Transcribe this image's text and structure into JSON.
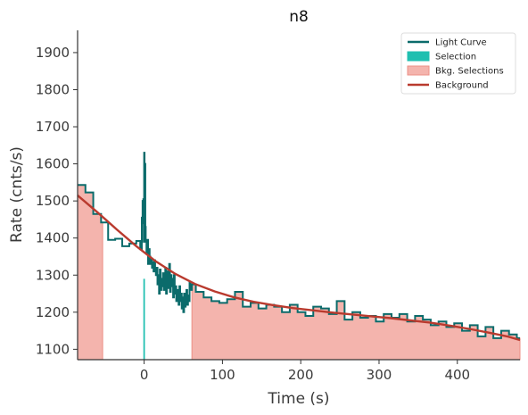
{
  "chart_data": {
    "type": "line",
    "title": "n8",
    "xlabel": "Time (s)",
    "ylabel": "Rate (cnts/s)",
    "xlim": [
      -85,
      480
    ],
    "ylim": [
      1072,
      1960
    ],
    "xticks": [
      0,
      100,
      200,
      300,
      400
    ],
    "yticks": [
      1100,
      1200,
      1300,
      1400,
      1500,
      1600,
      1700,
      1800,
      1900
    ],
    "grid": false,
    "legend_position": "top-right",
    "legend": [
      {
        "label": "Light Curve",
        "kind": "line",
        "color": "#0b6b6b"
      },
      {
        "label": "Selection",
        "kind": "patch",
        "color": "#1fbfb0"
      },
      {
        "label": "Bkg. Selections",
        "kind": "patch",
        "color": "#f4b4ad"
      },
      {
        "label": "Background",
        "kind": "line",
        "color": "#b93a2e"
      }
    ],
    "selection_interval": [
      -1,
      1
    ],
    "background_intervals": [
      [
        -85,
        -53
      ],
      [
        61,
        480
      ]
    ],
    "light_curve": {
      "x": [
        -85,
        -75,
        -65,
        -55,
        -46,
        -37,
        -28,
        -19,
        -10,
        -5,
        -3,
        -2,
        -1.5,
        -1,
        -0.5,
        0,
        0.5,
        1,
        1.5,
        2,
        3,
        4,
        5,
        6,
        7,
        8,
        9,
        10,
        11,
        12,
        13,
        14,
        15,
        16,
        17,
        18,
        19,
        20,
        21,
        22,
        23,
        24,
        25,
        26,
        27,
        28,
        29,
        30,
        31,
        32,
        33,
        34,
        35,
        36,
        37,
        38,
        39,
        40,
        41,
        42,
        43,
        44,
        45,
        46,
        47,
        48,
        49,
        50,
        51,
        52,
        53,
        54,
        55,
        56,
        57,
        58,
        59,
        61,
        66,
        76,
        86,
        96,
        106,
        116,
        126,
        136,
        146,
        156,
        166,
        176,
        186,
        196,
        206,
        216,
        226,
        236,
        246,
        256,
        266,
        276,
        286,
        296,
        306,
        316,
        326,
        336,
        346,
        356,
        366,
        376,
        386,
        396,
        406,
        416,
        426,
        436,
        446,
        456,
        466,
        476
      ],
      "y": [
        1543,
        1523,
        1465,
        1442,
        1395,
        1398,
        1378,
        1385,
        1392,
        1370,
        1455,
        1500,
        1440,
        1505,
        1390,
        1630,
        1420,
        1600,
        1430,
        1390,
        1360,
        1395,
        1330,
        1370,
        1350,
        1330,
        1345,
        1320,
        1335,
        1310,
        1340,
        1315,
        1300,
        1320,
        1275,
        1300,
        1250,
        1315,
        1260,
        1290,
        1270,
        1305,
        1260,
        1280,
        1320,
        1250,
        1310,
        1265,
        1290,
        1330,
        1255,
        1300,
        1270,
        1290,
        1240,
        1300,
        1250,
        1270,
        1230,
        1260,
        1240,
        1220,
        1270,
        1230,
        1250,
        1210,
        1240,
        1200,
        1250,
        1215,
        1230,
        1260,
        1220,
        1245,
        1230,
        1280,
        1260,
        1275,
        1255,
        1240,
        1230,
        1225,
        1235,
        1255,
        1215,
        1225,
        1210,
        1220,
        1215,
        1200,
        1220,
        1200,
        1190,
        1215,
        1210,
        1195,
        1230,
        1180,
        1200,
        1185,
        1190,
        1175,
        1195,
        1185,
        1195,
        1175,
        1190,
        1180,
        1165,
        1175,
        1160,
        1170,
        1150,
        1165,
        1135,
        1160,
        1130,
        1150,
        1140,
        1130
      ]
    },
    "background_model": {
      "x": [
        -85,
        -60,
        -35,
        -10,
        15,
        40,
        65,
        90,
        115,
        140,
        165,
        190,
        215,
        240,
        265,
        290,
        315,
        340,
        365,
        390,
        415,
        440,
        465,
        480
      ],
      "y": [
        1515,
        1470,
        1423,
        1378,
        1337,
        1303,
        1276,
        1256,
        1240,
        1228,
        1219,
        1211,
        1205,
        1199,
        1194,
        1189,
        1184,
        1178,
        1172,
        1164,
        1155,
        1145,
        1134,
        1125
      ]
    },
    "colors": {
      "light_curve": "#0b6b6b",
      "selection": "#1fbfb0",
      "bkg_fill": "#f4b4ad",
      "bkg_edge": "#ec8f86",
      "background": "#b93a2e",
      "axis": "#333333"
    }
  }
}
